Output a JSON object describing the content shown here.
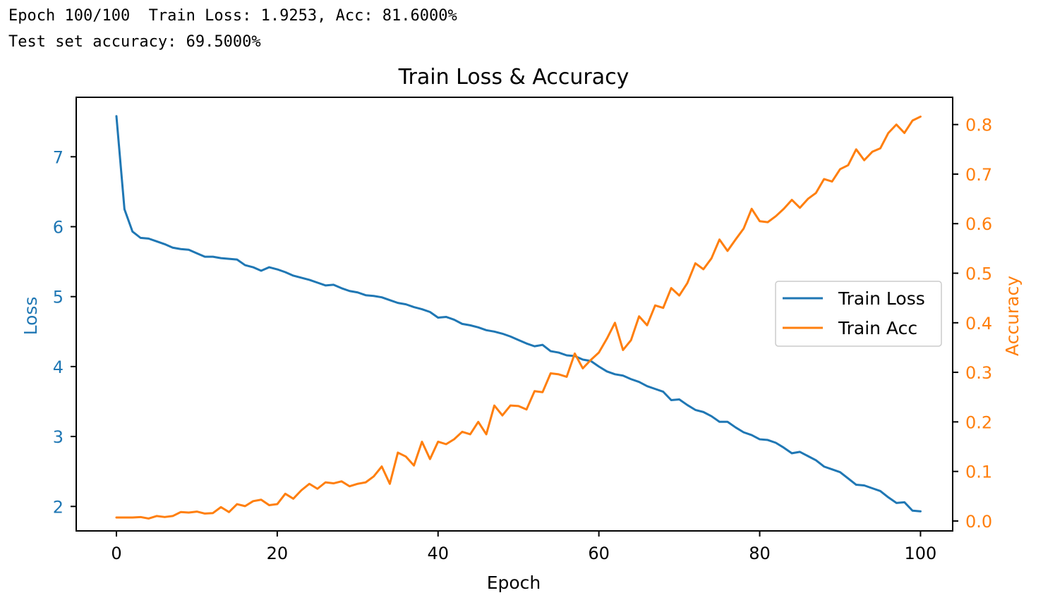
{
  "console": {
    "line1": "Epoch 100/100  Train Loss: 1.9253, Acc: 81.6000%",
    "line2": "Test set accuracy: 69.5000%"
  },
  "colors": {
    "loss": "#1f77b4",
    "acc": "#ff7f0e",
    "axis": "#000000"
  },
  "chart_data": {
    "type": "line",
    "title": "Train Loss & Accuracy",
    "xlabel": "Epoch",
    "ylabel_left": "Loss",
    "ylabel_right": "Accuracy",
    "xlim": [
      -5,
      104
    ],
    "ylim_left": [
      1.65,
      7.85
    ],
    "ylim_right": [
      -0.02,
      0.855
    ],
    "xticks": [
      0,
      20,
      40,
      60,
      80,
      100
    ],
    "yticks_left": [
      2,
      3,
      4,
      5,
      6,
      7
    ],
    "yticks_right": [
      0.0,
      0.1,
      0.2,
      0.3,
      0.4,
      0.5,
      0.6,
      0.7,
      0.8
    ],
    "legend_position": "center-right",
    "grid": false,
    "series": [
      {
        "name": "Train Loss",
        "axis": "left",
        "values": [
          7.58,
          6.25,
          5.93,
          5.84,
          5.83,
          5.79,
          5.75,
          5.7,
          5.68,
          5.67,
          5.62,
          5.57,
          5.57,
          5.55,
          5.54,
          5.53,
          5.45,
          5.42,
          5.37,
          5.42,
          5.39,
          5.35,
          5.3,
          5.27,
          5.24,
          5.2,
          5.16,
          5.17,
          5.12,
          5.08,
          5.06,
          5.02,
          5.01,
          4.99,
          4.95,
          4.91,
          4.89,
          4.85,
          4.82,
          4.78,
          4.7,
          4.71,
          4.67,
          4.61,
          4.59,
          4.56,
          4.52,
          4.5,
          4.47,
          4.43,
          4.38,
          4.33,
          4.29,
          4.31,
          4.22,
          4.2,
          4.16,
          4.15,
          4.1,
          4.08,
          4.0,
          3.93,
          3.89,
          3.87,
          3.82,
          3.78,
          3.72,
          3.68,
          3.64,
          3.52,
          3.53,
          3.45,
          3.38,
          3.35,
          3.29,
          3.21,
          3.21,
          3.13,
          3.06,
          3.02,
          2.96,
          2.95,
          2.91,
          2.84,
          2.76,
          2.78,
          2.72,
          2.66,
          2.57,
          2.53,
          2.49,
          2.4,
          2.31,
          2.3,
          2.26,
          2.22,
          2.13,
          2.05,
          2.06,
          1.94,
          1.93
        ]
      },
      {
        "name": "Train Acc",
        "axis": "right",
        "values": [
          0.007,
          0.007,
          0.007,
          0.008,
          0.005,
          0.01,
          0.008,
          0.01,
          0.018,
          0.017,
          0.019,
          0.015,
          0.016,
          0.028,
          0.018,
          0.034,
          0.03,
          0.04,
          0.043,
          0.032,
          0.034,
          0.055,
          0.045,
          0.062,
          0.075,
          0.065,
          0.078,
          0.076,
          0.08,
          0.07,
          0.075,
          0.078,
          0.09,
          0.11,
          0.075,
          0.138,
          0.13,
          0.112,
          0.16,
          0.125,
          0.16,
          0.155,
          0.165,
          0.18,
          0.175,
          0.2,
          0.175,
          0.233,
          0.213,
          0.233,
          0.232,
          0.225,
          0.262,
          0.26,
          0.298,
          0.296,
          0.291,
          0.338,
          0.308,
          0.325,
          0.34,
          0.368,
          0.4,
          0.345,
          0.365,
          0.413,
          0.395,
          0.435,
          0.43,
          0.47,
          0.455,
          0.48,
          0.52,
          0.508,
          0.53,
          0.568,
          0.545,
          0.568,
          0.59,
          0.63,
          0.605,
          0.603,
          0.615,
          0.63,
          0.648,
          0.632,
          0.65,
          0.662,
          0.69,
          0.685,
          0.71,
          0.718,
          0.75,
          0.728,
          0.745,
          0.752,
          0.783,
          0.8,
          0.783,
          0.808,
          0.816
        ]
      }
    ]
  }
}
